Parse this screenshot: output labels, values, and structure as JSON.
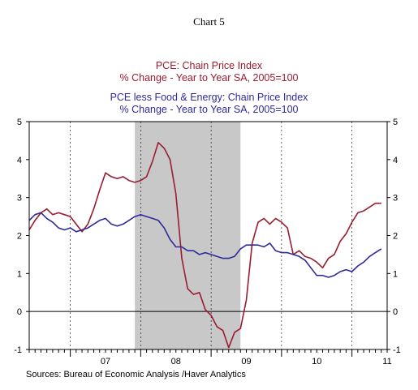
{
  "chart_number": "Chart 5",
  "legend": {
    "pce_line1": "PCE: Chain Price Index",
    "pce_line2": "% Change - Year to Year     SA, 2005=100",
    "core_line1": "PCE less Food & Energy: Chain Price Index",
    "core_line2": "% Change - Year to Year     SA, 2005=100"
  },
  "source": "Sources:  Bureau of Economic Analysis /Haver Analytics",
  "colors": {
    "pce": "#9b1b30",
    "core": "#2e2a9a",
    "recession": "#c8c8c8"
  },
  "chart_data": {
    "type": "line",
    "title": "Chart 5",
    "xlabel": "",
    "ylabel": "",
    "ylim": [
      -1,
      5
    ],
    "yticks": [
      -1,
      0,
      1,
      2,
      3,
      4,
      5
    ],
    "xlim": [
      "2006-06",
      "2011-07"
    ],
    "x_tick_labels": [
      "07",
      "08",
      "09",
      "10",
      "11"
    ],
    "recession_shading": [
      "2007-12",
      "2009-06"
    ],
    "grid": "dashed vertical at year boundaries, solid zero line",
    "x": [
      "2006-06",
      "2006-07",
      "2006-08",
      "2006-09",
      "2006-10",
      "2006-11",
      "2006-12",
      "2007-01",
      "2007-02",
      "2007-03",
      "2007-04",
      "2007-05",
      "2007-06",
      "2007-07",
      "2007-08",
      "2007-09",
      "2007-10",
      "2007-11",
      "2007-12",
      "2008-01",
      "2008-02",
      "2008-03",
      "2008-04",
      "2008-05",
      "2008-06",
      "2008-07",
      "2008-08",
      "2008-09",
      "2008-10",
      "2008-11",
      "2008-12",
      "2009-01",
      "2009-02",
      "2009-03",
      "2009-04",
      "2009-05",
      "2009-06",
      "2009-07",
      "2009-08",
      "2009-09",
      "2009-10",
      "2009-11",
      "2009-12",
      "2010-01",
      "2010-02",
      "2010-03",
      "2010-04",
      "2010-05",
      "2010-06",
      "2010-07",
      "2010-08",
      "2010-09",
      "2010-10",
      "2010-11",
      "2010-12",
      "2011-01",
      "2011-02",
      "2011-03",
      "2011-04",
      "2011-05",
      "2011-06"
    ],
    "series": [
      {
        "name": "PCE: Chain Price Index",
        "color": "#9b1b30",
        "values": [
          2.15,
          2.4,
          2.6,
          2.7,
          2.55,
          2.6,
          2.55,
          2.5,
          2.3,
          2.1,
          2.3,
          2.7,
          3.2,
          3.65,
          3.55,
          3.5,
          3.55,
          3.45,
          3.4,
          3.45,
          3.55,
          3.95,
          4.45,
          4.3,
          4.0,
          3.1,
          1.4,
          0.6,
          0.45,
          0.5,
          0.05,
          -0.1,
          -0.4,
          -0.5,
          -0.95,
          -0.55,
          -0.45,
          0.3,
          1.8,
          2.35,
          2.45,
          2.3,
          2.45,
          2.35,
          2.2,
          1.5,
          1.6,
          1.45,
          1.4,
          1.3,
          1.15,
          1.4,
          1.5,
          1.85,
          2.05,
          2.35,
          2.6,
          2.65,
          2.75,
          2.85,
          2.85
        ]
      },
      {
        "name": "PCE less Food & Energy: Chain Price Index",
        "color": "#2e2a9a",
        "values": [
          2.4,
          2.55,
          2.6,
          2.45,
          2.35,
          2.2,
          2.15,
          2.2,
          2.1,
          2.15,
          2.2,
          2.3,
          2.4,
          2.45,
          2.3,
          2.25,
          2.3,
          2.4,
          2.5,
          2.55,
          2.5,
          2.45,
          2.4,
          2.2,
          1.9,
          1.7,
          1.7,
          1.6,
          1.6,
          1.5,
          1.55,
          1.5,
          1.45,
          1.4,
          1.4,
          1.45,
          1.65,
          1.75,
          1.75,
          1.75,
          1.7,
          1.8,
          1.6,
          1.55,
          1.55,
          1.5,
          1.45,
          1.35,
          1.15,
          0.95,
          0.95,
          0.9,
          0.95,
          1.05,
          1.1,
          1.05,
          1.2,
          1.3,
          1.45,
          1.55,
          1.65
        ]
      }
    ]
  }
}
